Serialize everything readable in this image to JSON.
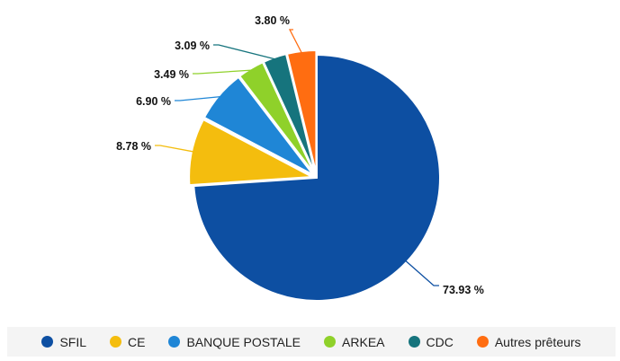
{
  "chart_data": {
    "type": "pie",
    "title": "",
    "legend_position": "bottom",
    "series": [
      {
        "name": "SFIL",
        "value": 73.93,
        "label": "73.93 %",
        "color": "#0d4fa2"
      },
      {
        "name": "CE",
        "value": 8.78,
        "label": "8.78 %",
        "color": "#f4bd0e"
      },
      {
        "name": "BANQUE POSTALE",
        "value": 6.9,
        "label": "6.90 %",
        "color": "#1f86d6"
      },
      {
        "name": "ARKEA",
        "value": 3.49,
        "label": "3.49 %",
        "color": "#8fd12a"
      },
      {
        "name": "CDC",
        "value": 3.09,
        "label": "3.09 %",
        "color": "#16747d"
      },
      {
        "name": "Autres prêteurs",
        "value": 3.8,
        "label": "3.80 %",
        "color": "#ff6d11"
      }
    ]
  }
}
